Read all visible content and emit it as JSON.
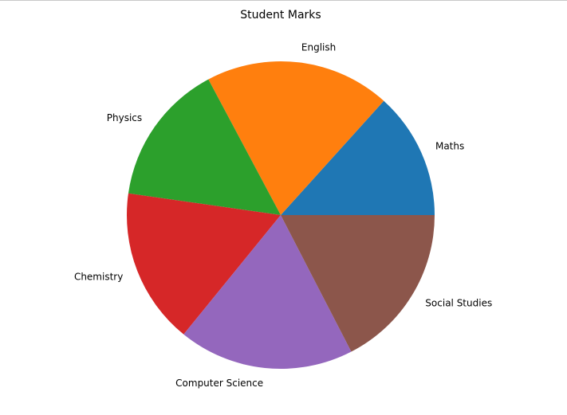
{
  "chart_data": {
    "type": "pie",
    "title": "Student Marks",
    "categories": [
      "Maths",
      "English",
      "Physics",
      "Chemistry",
      "Computer Science",
      "Social Studies"
    ],
    "values": [
      65,
      95,
      73,
      80,
      90,
      85
    ],
    "colors": [
      "#1f77b4",
      "#ff7f0e",
      "#2ca02c",
      "#d62728",
      "#9467bd",
      "#8c564b"
    ],
    "start_angle_deg": 0,
    "direction": "counterclockwise",
    "legend": "none"
  }
}
